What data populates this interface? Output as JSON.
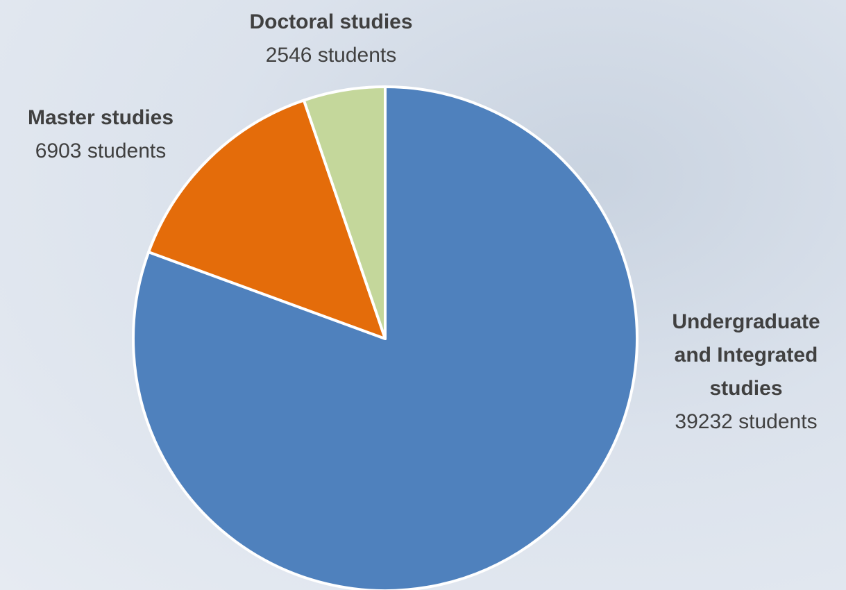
{
  "chart_data": {
    "type": "pie",
    "categories": [
      "Undergraduate and Integrated studies",
      "Master studies",
      "Doctoral studies"
    ],
    "values": [
      39232,
      6903,
      2546
    ],
    "value_labels": [
      "39232 students",
      "6903 students",
      "2546 students"
    ],
    "colors": [
      "#4f81bd",
      "#e46c0a",
      "#c4d79b"
    ]
  }
}
